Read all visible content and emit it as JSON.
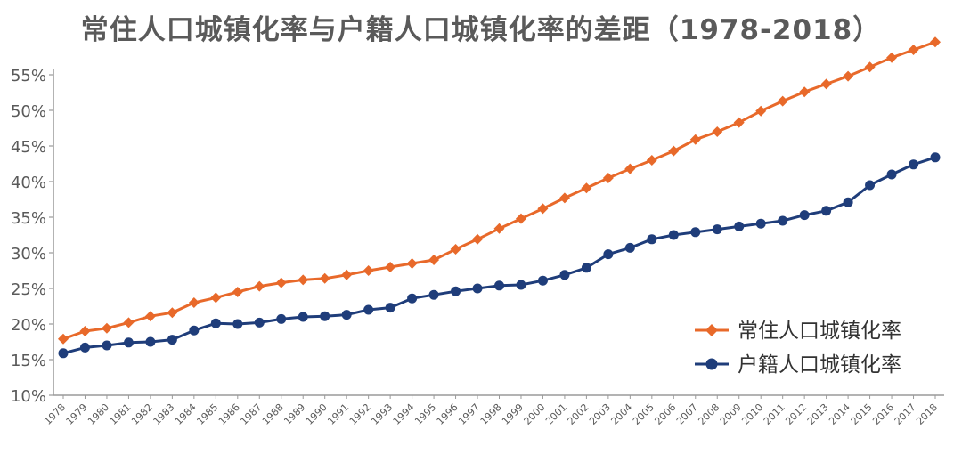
{
  "chart_data": {
    "type": "line",
    "title": "常住人口城镇化率与户籍人口城镇化率的差距（1978-2018）",
    "xlabel": "",
    "ylabel": "",
    "ylim": [
      10,
      58
    ],
    "yticks": [
      "10%",
      "15%",
      "20%",
      "25%",
      "30%",
      "35%",
      "40%",
      "45%",
      "50%",
      "55%"
    ],
    "ytick_values": [
      10,
      15,
      20,
      25,
      30,
      35,
      40,
      45,
      50,
      55
    ],
    "grid": false,
    "legend_position": "bottom-right",
    "x": [
      "1978",
      "1979",
      "1980",
      "1981",
      "1982",
      "1983",
      "1984",
      "1985",
      "1986",
      "1987",
      "1988",
      "1989",
      "1990",
      "1991",
      "1992",
      "1993",
      "1994",
      "1995",
      "1996",
      "1997",
      "1998",
      "1999",
      "2000",
      "2001",
      "2002",
      "2003",
      "2004",
      "2005",
      "2006",
      "2007",
      "2008",
      "2009",
      "2010",
      "2011",
      "2012",
      "2013",
      "2014",
      "2015",
      "2016",
      "2017",
      "2018"
    ],
    "series": [
      {
        "name": "常住人口城镇化率",
        "color": "#e8692a",
        "marker": "diamond",
        "values": [
          17.9,
          19.0,
          19.4,
          20.2,
          21.1,
          21.6,
          23.0,
          23.7,
          24.5,
          25.3,
          25.8,
          26.2,
          26.4,
          26.9,
          27.5,
          28.0,
          28.5,
          29.0,
          30.5,
          31.9,
          33.4,
          34.8,
          36.2,
          37.7,
          39.1,
          40.5,
          41.8,
          43.0,
          44.3,
          45.9,
          47.0,
          48.3,
          49.9,
          51.3,
          52.6,
          53.7,
          54.8,
          56.1,
          57.4,
          58.5,
          59.6
        ]
      },
      {
        "name": "户籍人口城镇化率",
        "color": "#1f3d7a",
        "marker": "circle",
        "values": [
          15.9,
          16.7,
          17.0,
          17.4,
          17.5,
          17.8,
          19.1,
          20.1,
          20.0,
          20.2,
          20.7,
          21.0,
          21.1,
          21.3,
          22.0,
          22.3,
          23.6,
          24.1,
          24.6,
          25.0,
          25.4,
          25.5,
          26.1,
          26.9,
          27.9,
          29.8,
          30.7,
          31.9,
          32.5,
          32.9,
          33.3,
          33.7,
          34.1,
          34.5,
          35.3,
          35.9,
          37.1,
          39.5,
          41.0,
          42.4,
          43.4
        ]
      }
    ]
  }
}
